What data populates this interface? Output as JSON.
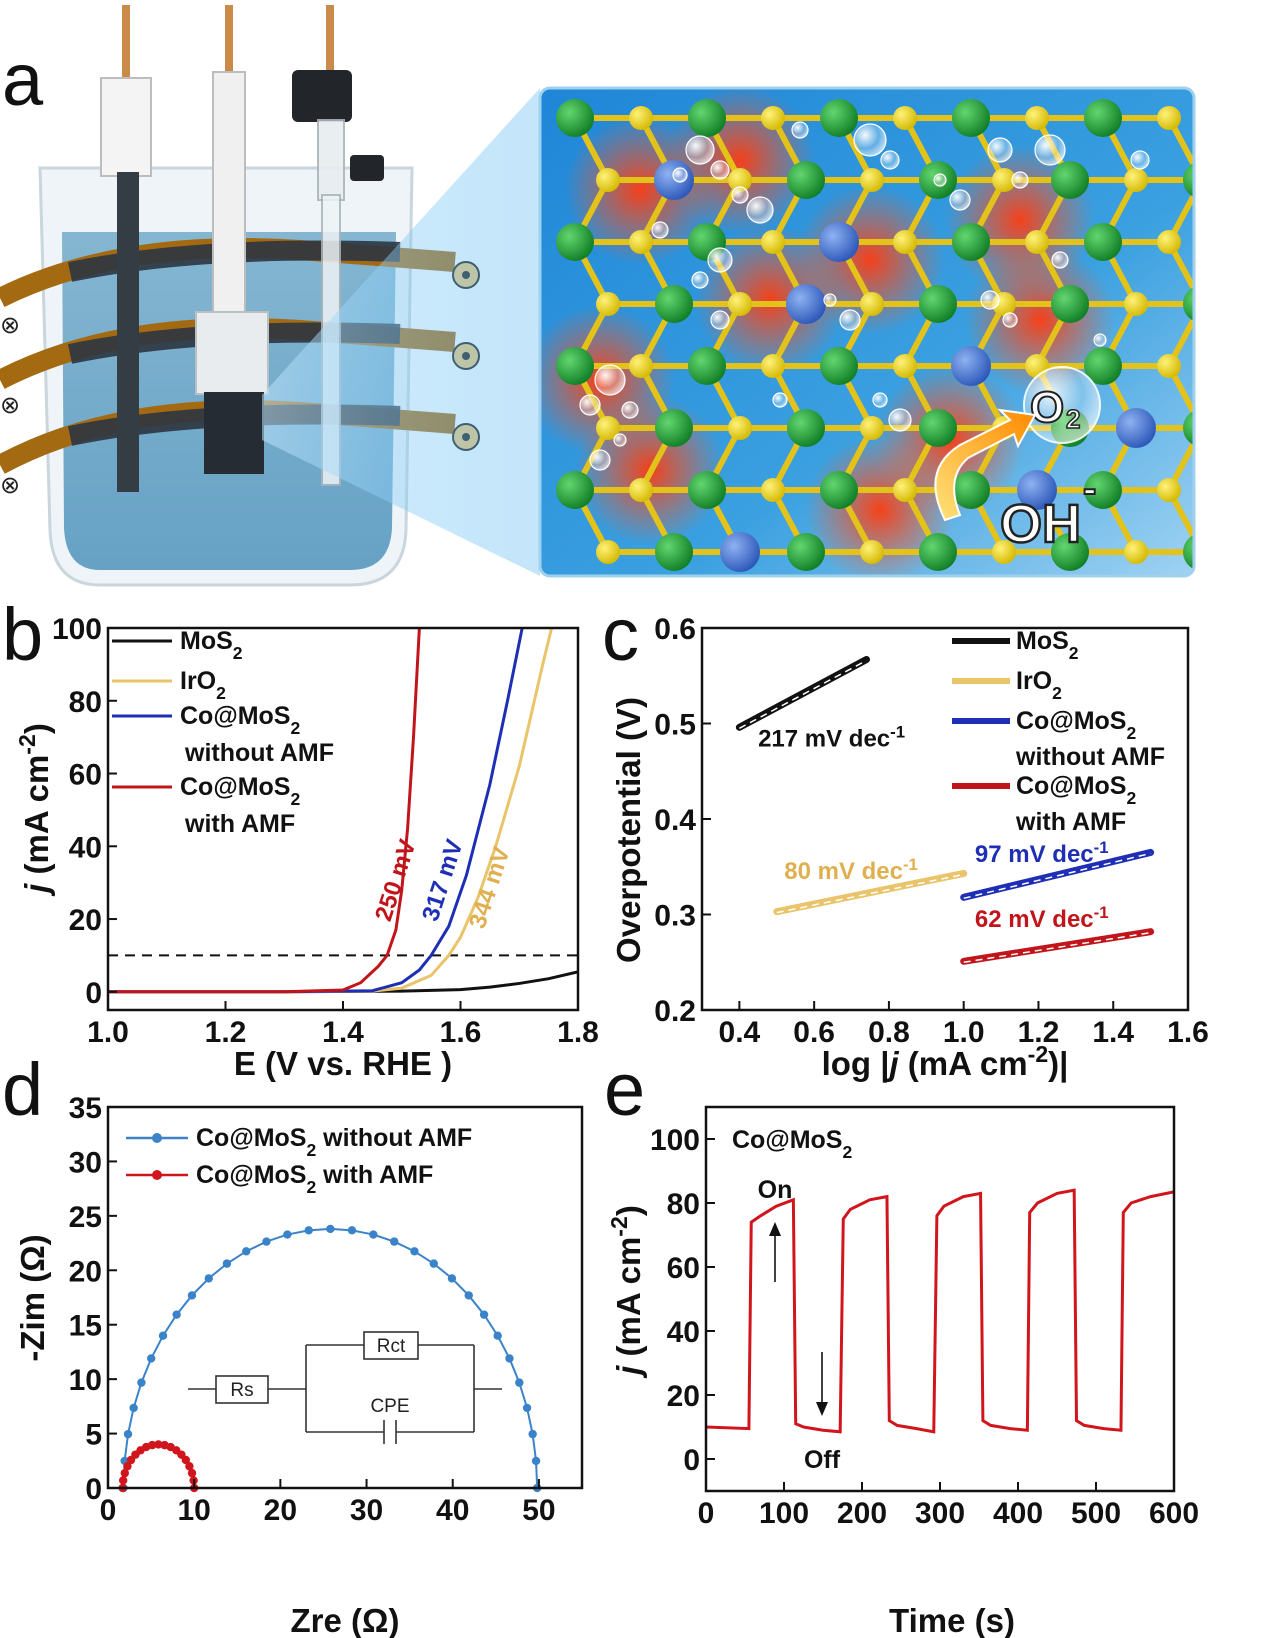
{
  "figure": {
    "panel_labels": {
      "a": "a",
      "b": "b",
      "c": "c",
      "d": "d",
      "e": "e"
    }
  },
  "illustration": {
    "o2_label": "O",
    "o2_sub": "2",
    "oh_label": "OH",
    "oh_sup": "-",
    "field_in_symbol": "⊗",
    "field_out_symbol": "⊙",
    "colors": {
      "water": "#6fa7c9",
      "electrolyte_dark": "#2f3f4a",
      "coil": "#b7791f",
      "s_atom": "#e6cf1f",
      "mo_atom": "#22a33a",
      "co_atom": "#3c6fd1",
      "glow": "#ff3b10",
      "background": "#2a8fd6"
    }
  },
  "chart_data": [
    {
      "panel": "b",
      "type": "line",
      "xlabel": "E (V vs. RHE )",
      "ylabel_parts": [
        "j",
        " (mA cm",
        "-2",
        ")"
      ],
      "xlim": [
        1.0,
        1.8
      ],
      "ylim": [
        -5,
        100
      ],
      "xticks": [
        "1.0",
        "1.2",
        "1.4",
        "1.6",
        "1.8"
      ],
      "yticks": [
        "0",
        "20",
        "40",
        "60",
        "80",
        "100"
      ],
      "reference_line": {
        "y": 10,
        "style": "dashed"
      },
      "legend": [
        {
          "line1": "MoS",
          "sub1": "2",
          "line2": "",
          "color": "#111111"
        },
        {
          "line1": "IrO",
          "sub1": "2",
          "line2": "",
          "color": "#e9c46a"
        },
        {
          "line1": "Co@MoS",
          "sub1": "2",
          "line2": "without AMF",
          "color": "#1f2fb5"
        },
        {
          "line1": "Co@MoS",
          "sub1": "2",
          "line2": "with AMF",
          "color": "#c0151b"
        }
      ],
      "annotations": [
        {
          "text": "250 mV",
          "color": "#c0151b",
          "x": 1.48,
          "y": 19
        },
        {
          "text": "317 mV",
          "color": "#1f2fb5",
          "x": 1.56,
          "y": 19
        },
        {
          "text": "344 mV",
          "color": "#e0b050",
          "x": 1.64,
          "y": 17
        }
      ],
      "series": [
        {
          "name": "MoS2",
          "color": "#111111",
          "x": [
            1.0,
            1.3,
            1.5,
            1.6,
            1.65,
            1.7,
            1.75,
            1.8
          ],
          "y": [
            0,
            0,
            0.2,
            0.6,
            1.3,
            2.3,
            3.6,
            5.5
          ]
        },
        {
          "name": "IrO2",
          "color": "#e9c46a",
          "x": [
            1.0,
            1.3,
            1.45,
            1.5,
            1.55,
            1.58,
            1.6,
            1.63,
            1.66,
            1.7,
            1.74,
            1.755
          ],
          "y": [
            0,
            0,
            0.2,
            1.0,
            4.5,
            10,
            15,
            26,
            40,
            62,
            90,
            100
          ]
        },
        {
          "name": "Co@MoS2 without AMF",
          "color": "#1f2fb5",
          "x": [
            1.0,
            1.3,
            1.45,
            1.5,
            1.53,
            1.55,
            1.58,
            1.61,
            1.65,
            1.68,
            1.705
          ],
          "y": [
            0,
            0,
            0.3,
            2.5,
            6,
            10,
            18,
            32,
            57,
            80,
            100
          ]
        },
        {
          "name": "Co@MoS2 with AMF",
          "color": "#c0151b",
          "x": [
            1.0,
            1.3,
            1.4,
            1.43,
            1.46,
            1.475,
            1.49,
            1.5,
            1.51,
            1.52,
            1.53
          ],
          "y": [
            0,
            0,
            0.5,
            2.5,
            7,
            10,
            17,
            28,
            45,
            70,
            100
          ]
        }
      ]
    },
    {
      "panel": "c",
      "type": "line",
      "xlabel_parts": [
        "log |",
        "j",
        " (mA cm",
        "-2",
        ")|"
      ],
      "ylabel": "Overpotential (V)",
      "xlim": [
        0.3,
        1.6
      ],
      "ylim": [
        0.2,
        0.6
      ],
      "xticks": [
        "0.4",
        "0.6",
        "0.8",
        "1.0",
        "1.2",
        "1.4",
        "1.6"
      ],
      "yticks": [
        "0.2",
        "0.3",
        "0.4",
        "0.5",
        "0.6"
      ],
      "legend": [
        {
          "line1": "MoS",
          "sub1": "2",
          "line2": "",
          "color": "#111111"
        },
        {
          "line1": "IrO",
          "sub1": "2",
          "line2": "",
          "color": "#e9c46a"
        },
        {
          "line1": "Co@MoS",
          "sub1": "2",
          "line2": "without AMF",
          "color": "#1f2fb5"
        },
        {
          "line1": "Co@MoS",
          "sub1": "2",
          "line2": "with AMF",
          "color": "#c0151b"
        }
      ],
      "annotations": [
        {
          "text": "217 mV dec",
          "sup": "-1",
          "color": "#111111",
          "x": 0.45,
          "y": 0.476
        },
        {
          "text": "80 mV dec",
          "sup": "-1",
          "color": "#e0b050",
          "x": 0.52,
          "y": 0.337
        },
        {
          "text": "97 mV dec",
          "sup": "-1",
          "color": "#1f2fb5",
          "x": 1.03,
          "y": 0.355
        },
        {
          "text": "62 mV dec",
          "sup": "-1",
          "color": "#c0151b",
          "x": 1.03,
          "y": 0.287
        }
      ],
      "series": [
        {
          "name": "MoS2",
          "color": "#111111",
          "x": [
            0.4,
            0.74
          ],
          "y": [
            0.496,
            0.567
          ]
        },
        {
          "name": "IrO2",
          "color": "#e9c46a",
          "x": [
            0.5,
            1.0
          ],
          "y": [
            0.303,
            0.343
          ]
        },
        {
          "name": "Co@MoS2 without AMF",
          "color": "#1f2fb5",
          "x": [
            1.0,
            1.5
          ],
          "y": [
            0.318,
            0.365
          ]
        },
        {
          "name": "Co@MoS2 with AMF",
          "color": "#c0151b",
          "x": [
            1.0,
            1.5
          ],
          "y": [
            0.251,
            0.282
          ]
        }
      ]
    },
    {
      "panel": "d",
      "type": "scatter",
      "xlabel": "Zre (Ω)",
      "ylabel": "-Zim (Ω)",
      "xlim": [
        0,
        55
      ],
      "ylim": [
        0,
        35
      ],
      "xticks": [
        "0",
        "10",
        "20",
        "30",
        "40",
        "50"
      ],
      "yticks": [
        "0",
        "5",
        "10",
        "15",
        "20",
        "25",
        "30",
        "35"
      ],
      "legend": [
        {
          "line1": "Co@MoS",
          "sub1": "2",
          "line2": " without AMF",
          "color": "#3b83c8"
        },
        {
          "line1": "Co@MoS",
          "sub1": "2",
          "line2": " with AMF",
          "color": "#d0161c"
        }
      ],
      "circuit": {
        "rs": "Rs",
        "rct": "Rct",
        "cpe": "CPE"
      },
      "series": [
        {
          "name": "Co@MoS2 without AMF",
          "color": "#3b83c8",
          "center": 25.8,
          "radius": 24.0,
          "peak": 23.8
        },
        {
          "name": "Co@MoS2 with AMF",
          "color": "#d0161c",
          "center": 5.85,
          "radius": 4.15,
          "peak": 4.0
        }
      ]
    },
    {
      "panel": "e",
      "type": "line",
      "xlabel": "Time (s)",
      "ylabel_parts": [
        "j",
        " (mA cm",
        "-2",
        ")"
      ],
      "xlim": [
        0,
        600
      ],
      "ylim": [
        -10,
        110
      ],
      "xticks": [
        "0",
        "100",
        "200",
        "300",
        "400",
        "500",
        "600"
      ],
      "yticks": [
        "0",
        "20",
        "40",
        "60",
        "80",
        "100"
      ],
      "label_main": "Co@MoS",
      "label_sub": "2",
      "on_label": "On",
      "off_label": "Off",
      "series": [
        {
          "name": "Co@MoS2",
          "color": "#d0161c",
          "x": [
            0,
            55,
            58,
            70,
            90,
            112,
            115,
            125,
            150,
            172,
            176,
            185,
            210,
            232,
            235,
            245,
            270,
            292,
            296,
            305,
            330,
            352,
            355,
            365,
            390,
            412,
            415,
            425,
            450,
            472,
            475,
            485,
            510,
            532,
            535,
            545,
            570,
            600
          ],
          "y": [
            10,
            9.5,
            74,
            76,
            79,
            81,
            11,
            10,
            9,
            8.5,
            75,
            78,
            81,
            82,
            12,
            10.5,
            9.5,
            8.5,
            76,
            79,
            82,
            83,
            12,
            10.5,
            9.5,
            9,
            77,
            80,
            83,
            84,
            12,
            10.5,
            9.5,
            9,
            77,
            80,
            82,
            83.5
          ]
        }
      ]
    }
  ]
}
